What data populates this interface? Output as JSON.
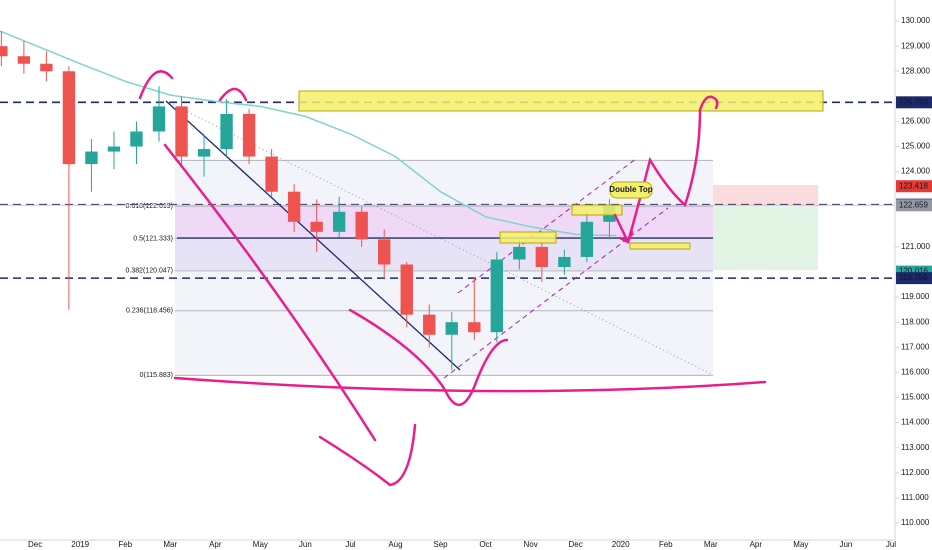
{
  "chart_data": {
    "type": "candlestick",
    "x": [
      -0.75,
      -0.25,
      0.25,
      0.75,
      1.25,
      1.75,
      2.25,
      2.75,
      3.25,
      3.75,
      4.25,
      4.75,
      5.25,
      5.75,
      6.25,
      6.75,
      7.25,
      7.75,
      8.25,
      8.75,
      9.25,
      9.75,
      10.25,
      10.75,
      11.25,
      11.75,
      12.25,
      12.75
    ],
    "open": [
      129.0,
      128.6,
      128.3,
      128.0,
      124.3,
      124.8,
      125.0,
      125.6,
      126.6,
      124.6,
      124.9,
      126.3,
      124.6,
      123.2,
      122.0,
      121.6,
      122.4,
      121.3,
      120.3,
      118.3,
      117.5,
      118.0,
      117.6,
      120.5,
      121.0,
      120.2,
      120.6,
      122.0
    ],
    "high": [
      129.6,
      129.2,
      128.8,
      128.2,
      125.3,
      125.6,
      126.0,
      127.4,
      127.0,
      125.5,
      126.9,
      126.5,
      124.9,
      123.5,
      122.9,
      123.0,
      122.6,
      121.7,
      120.4,
      118.7,
      118.4,
      119.8,
      120.8,
      121.4,
      121.2,
      120.9,
      122.4,
      122.9
    ],
    "low": [
      128.2,
      127.9,
      127.6,
      118.5,
      123.2,
      124.1,
      124.3,
      125.2,
      124.2,
      123.8,
      124.6,
      124.3,
      123.0,
      121.6,
      120.8,
      121.4,
      121.0,
      119.8,
      117.8,
      117.0,
      116.1,
      117.3,
      117.2,
      120.1,
      119.6,
      119.9,
      120.4,
      121.3
    ],
    "close": [
      128.6,
      128.3,
      128.0,
      124.3,
      124.8,
      125.0,
      125.6,
      126.6,
      124.6,
      124.9,
      126.3,
      124.6,
      123.2,
      122.0,
      121.6,
      122.4,
      121.3,
      120.3,
      118.3,
      117.5,
      118.0,
      117.6,
      120.5,
      121.0,
      120.2,
      120.6,
      122.0,
      122.66
    ],
    "up_color": "#26a69a",
    "down_color": "#ef5350",
    "ma": {
      "color": "#7fd3cf",
      "x": [
        -0.78,
        1,
        2,
        3,
        4,
        5,
        6,
        7,
        8,
        9,
        10,
        11,
        12,
        12.9
      ],
      "values": [
        129.6,
        128.3,
        127.6,
        127.05,
        126.8,
        126.6,
        126.2,
        125.5,
        124.6,
        123.2,
        122.2,
        121.8,
        121.5,
        121.45
      ]
    },
    "xlim": [
      -0.78,
      19.09
    ],
    "ylim": [
      109.32,
      130.84
    ],
    "xticks": [
      {
        "value": 0,
        "label": "Dec"
      },
      {
        "value": 1,
        "label": "2019"
      },
      {
        "value": 2,
        "label": "Feb"
      },
      {
        "value": 3,
        "label": "Mar"
      },
      {
        "value": 4,
        "label": "Apr"
      },
      {
        "value": 5,
        "label": "May"
      },
      {
        "value": 6,
        "label": "Jun"
      },
      {
        "value": 7,
        "label": "Jul"
      },
      {
        "value": 8,
        "label": "Aug"
      },
      {
        "value": 9,
        "label": "Sep"
      },
      {
        "value": 10,
        "label": "Oct"
      },
      {
        "value": 11,
        "label": "Nov"
      },
      {
        "value": 12,
        "label": "Dec"
      },
      {
        "value": 13,
        "label": "2020"
      },
      {
        "value": 14,
        "label": "Feb"
      },
      {
        "value": 15,
        "label": "Mar"
      },
      {
        "value": 16,
        "label": "Apr"
      },
      {
        "value": 17,
        "label": "May"
      },
      {
        "value": 18,
        "label": "Jun"
      },
      {
        "value": 19,
        "label": "Jul"
      }
    ],
    "yticks": [
      {
        "value": 130,
        "label": "130.000"
      },
      {
        "value": 129,
        "label": "129.000"
      },
      {
        "value": 128,
        "label": "128.000"
      },
      {
        "value": 126,
        "label": "126.000"
      },
      {
        "value": 125,
        "label": "125.000"
      },
      {
        "value": 124,
        "label": "124.000"
      },
      {
        "value": 121,
        "label": "121.000"
      },
      {
        "value": 119,
        "label": "119.000"
      },
      {
        "value": 118,
        "label": "118.000"
      },
      {
        "value": 117,
        "label": "117.000"
      },
      {
        "value": 116,
        "label": "116.000"
      },
      {
        "value": 115,
        "label": "115.000"
      },
      {
        "value": 114,
        "label": "114.000"
      },
      {
        "value": 113,
        "label": "113.000"
      },
      {
        "value": 112,
        "label": "112.000"
      },
      {
        "value": 111,
        "label": "111.000"
      },
      {
        "value": 110,
        "label": "110.000"
      }
    ],
    "price_lines": [
      {
        "value": 126.763,
        "color": "#1c2a6b",
        "style": "dashed"
      },
      {
        "value": 123.418,
        "color": "#e53935",
        "style": "none"
      },
      {
        "value": 122.685,
        "color": "#1c2a6b",
        "style": "dashed"
      },
      {
        "value": 122.659,
        "color": "#9598a1",
        "style": "solid"
      },
      {
        "value": 120.016,
        "color": "#26a69a",
        "style": "none"
      },
      {
        "value": 119.756,
        "color": "#1c2a6b",
        "style": "dashed"
      }
    ],
    "fib_levels": [
      124.45,
      {
        "value": 122.619,
        "label": "0.618(122.619)"
      },
      {
        "value": 121.333,
        "label": "0.5(121.333)"
      },
      {
        "value": 120.047,
        "label": "0.382(120.047)"
      },
      {
        "value": 118.456,
        "label": "0.236(118.456)"
      },
      {
        "value": 115.883,
        "label": "0(115.883)"
      }
    ],
    "annotations": [
      "Double Top"
    ]
  }
}
